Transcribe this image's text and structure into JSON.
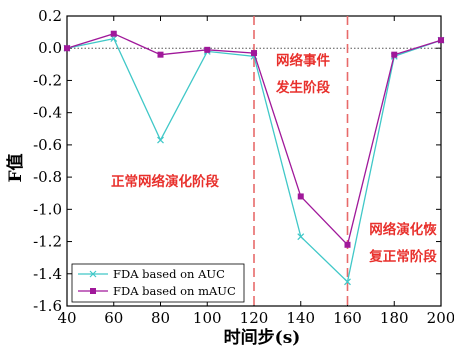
{
  "chart_data": {
    "type": "line",
    "xlabel": "时间步(s)",
    "ylabel": "F值",
    "xlim": [
      40,
      200
    ],
    "ylim": [
      -1.6,
      0.2
    ],
    "xticks": [
      40,
      60,
      80,
      100,
      120,
      140,
      160,
      180,
      200
    ],
    "yticks": [
      0.2,
      0.0,
      -0.2,
      -0.4,
      -0.6,
      -0.8,
      -1.0,
      -1.2,
      -1.4,
      -1.6
    ],
    "ytick_labels": [
      "0.2",
      "0.0",
      "-0.2",
      "-0.4",
      "-0.6",
      "-0.8",
      "-1.0",
      "-1.2",
      "-1.4",
      "-1.6"
    ],
    "x": [
      40,
      60,
      80,
      100,
      120,
      140,
      160,
      180,
      200
    ],
    "series": [
      {
        "name": "FDA based on AUC",
        "color": "#40c8c8",
        "marker": "x",
        "values": [
          0.0,
          0.06,
          -0.57,
          -0.02,
          -0.05,
          -1.17,
          -1.45,
          -0.05,
          0.05
        ]
      },
      {
        "name": "FDA based on mAUC",
        "color": "#a0189a",
        "marker": "square",
        "values": [
          0.0,
          0.09,
          -0.04,
          -0.01,
          -0.03,
          -0.92,
          -1.22,
          -0.04,
          0.05
        ]
      }
    ],
    "reference_lines": [
      {
        "orientation": "horizontal",
        "value": 0.0,
        "style": "dotted",
        "color": "#555555"
      },
      {
        "orientation": "vertical",
        "value": 120,
        "style": "dashed",
        "color": "#e86a6a"
      },
      {
        "orientation": "vertical",
        "value": 160,
        "style": "dashed",
        "color": "#e86a6a"
      }
    ],
    "annotations": [
      {
        "text": "正常网络演化阶段"
      },
      {
        "text": "网络事件"
      },
      {
        "text": "发生阶段"
      },
      {
        "text": "网络演化恢"
      },
      {
        "text": "复正常阶段"
      }
    ],
    "legend_position": "lower-left",
    "grid": false
  }
}
